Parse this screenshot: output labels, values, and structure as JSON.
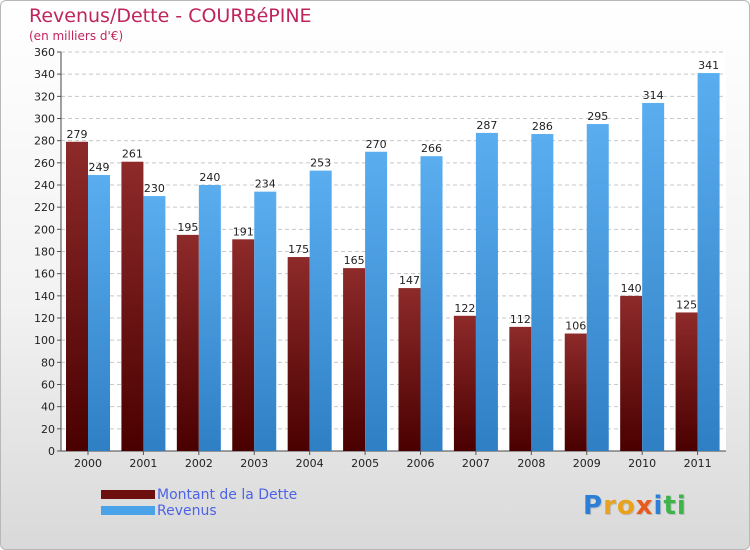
{
  "chart_data": {
    "type": "bar",
    "title": "Revenus/Dette - COURBéPINE",
    "subtitle": "(en milliers d'€)",
    "xlabel": "",
    "ylabel": "",
    "ylim": [
      0,
      360
    ],
    "ytick_step": 20,
    "grid": true,
    "categories": [
      "2000",
      "2001",
      "2002",
      "2003",
      "2004",
      "2005",
      "2006",
      "2007",
      "2008",
      "2009",
      "2010",
      "2011"
    ],
    "series": [
      {
        "name": "Montant de la Dette",
        "color": "#8b1a1a",
        "values": [
          279,
          261,
          195,
          191,
          175,
          165,
          147,
          122,
          112,
          106,
          140,
          125
        ]
      },
      {
        "name": "Revenus",
        "color": "#4aa3e8",
        "values": [
          249,
          230,
          240,
          234,
          253,
          270,
          266,
          287,
          286,
          295,
          314,
          341
        ]
      }
    ]
  },
  "legend": {
    "items": [
      {
        "label": "Montant de la Dette",
        "color": "#6e0f0f"
      },
      {
        "label": "Revenus",
        "color": "#4aa3e8"
      }
    ]
  },
  "brand": {
    "letters": [
      {
        "char": "P",
        "color": "#2b7fd6"
      },
      {
        "char": "r",
        "color": "#e8a21d"
      },
      {
        "char": "o",
        "color": "#e8a21d"
      },
      {
        "char": "x",
        "color": "#e85a1d"
      },
      {
        "char": "i",
        "color": "#2b7fd6"
      },
      {
        "char": "t",
        "color": "#3db34a"
      },
      {
        "char": "i",
        "color": "#3db34a"
      }
    ]
  }
}
